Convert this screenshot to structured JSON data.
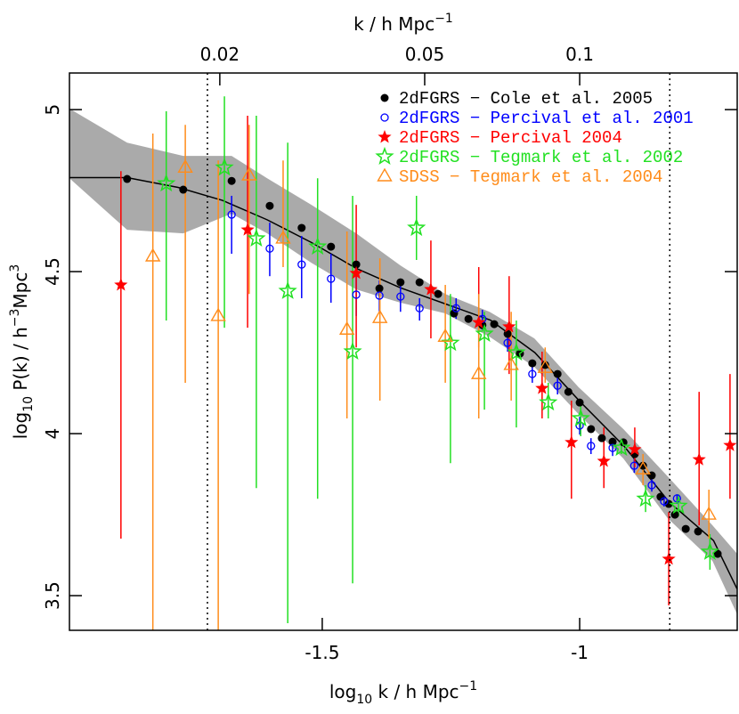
{
  "chart_data": {
    "type": "errorbar-scatter",
    "xlabel": [
      {
        "text": "log"
      },
      {
        "text": "10",
        "sub": true
      },
      {
        "text": " k / h Mpc"
      },
      {
        "text": "−1",
        "sup": true
      }
    ],
    "ylabel": [
      {
        "text": "log"
      },
      {
        "text": "10",
        "sub": true
      },
      {
        "text": " P(k) / h"
      },
      {
        "text": "−3",
        "sup": true
      },
      {
        "text": "Mpc"
      },
      {
        "text": "3",
        "sup": true
      }
    ],
    "top_axis": {
      "label": [
        {
          "text": "k / h Mpc"
        },
        {
          "text": "−1",
          "sup": true
        }
      ],
      "ticks": [
        0.02,
        0.05,
        0.1
      ],
      "log": true
    },
    "xlim": [
      -1.991,
      -0.694
    ],
    "ylim": [
      3.393,
      5.113
    ],
    "xticks": [
      -1.5,
      -1
    ],
    "yticks": [
      3.5,
      4,
      4.5,
      5
    ],
    "vlines": [
      -1.723,
      -0.825
    ],
    "legend": "upper right",
    "band": {
      "color": "#aaaaaa",
      "x": [
        -1.991,
        -1.879,
        -1.77,
        -1.676,
        -1.607,
        -1.521,
        -1.434,
        -1.348,
        -1.261,
        -1.175,
        -1.088,
        -1.002,
        -0.915,
        -0.829,
        -0.742,
        -0.694
      ],
      "upper": [
        5.003,
        4.898,
        4.857,
        4.857,
        4.788,
        4.706,
        4.618,
        4.519,
        4.431,
        4.376,
        4.294,
        4.143,
        4.014,
        3.868,
        3.717,
        3.629
      ],
      "lower": [
        4.788,
        4.629,
        4.618,
        4.679,
        4.618,
        4.527,
        4.445,
        4.404,
        4.371,
        4.299,
        4.206,
        4.06,
        3.923,
        3.739,
        3.607,
        3.442
      ]
    },
    "model": {
      "color": "#000000",
      "x": [
        -1.99,
        -1.879,
        -1.78,
        -1.694,
        -1.607,
        -1.521,
        -1.434,
        -1.348,
        -1.26,
        -1.173,
        -1.087,
        -1.0,
        -0.913,
        -0.827,
        -0.74,
        -0.694
      ],
      "values": [
        4.79,
        4.79,
        4.76,
        4.72,
        4.66,
        4.59,
        4.51,
        4.45,
        4.4,
        4.35,
        4.25,
        4.1,
        3.96,
        3.79,
        3.67,
        3.52
      ]
    },
    "series": [
      {
        "name": "2dFGRS − Cole et al. 2005",
        "color": "#000000",
        "marker": "filled-circle",
        "x": [
          -1.879,
          -1.77,
          -1.676,
          -1.602,
          -1.54,
          -1.483,
          -1.434,
          -1.389,
          -1.348,
          -1.311,
          -1.275,
          -1.244,
          -1.216,
          -1.189,
          -1.166,
          -1.14,
          -1.116,
          -1.092,
          -1.067,
          -1.043,
          -1.022,
          -1.0,
          -0.978,
          -0.957,
          -0.936,
          -0.915,
          -0.893,
          -0.877,
          -0.86,
          -0.843,
          -0.827,
          -0.815,
          -0.794,
          -0.77,
          -0.732
        ],
        "values": [
          4.786,
          4.753,
          4.78,
          4.703,
          4.635,
          4.577,
          4.522,
          4.448,
          4.467,
          4.467,
          4.431,
          4.371,
          4.354,
          4.335,
          4.338,
          4.308,
          4.247,
          4.217,
          4.212,
          4.184,
          4.129,
          4.096,
          4.014,
          3.986,
          3.975,
          3.973,
          3.937,
          3.901,
          3.871,
          3.805,
          3.783,
          3.75,
          3.706,
          3.698,
          3.629
        ]
      },
      {
        "name": "2dFGRS − Percival et al. 2001",
        "color": "#0000ff",
        "marker": "open-circle",
        "x": [
          -1.676,
          -1.602,
          -1.54,
          -1.483,
          -1.434,
          -1.389,
          -1.348,
          -1.311,
          -1.24,
          -1.189,
          -1.14,
          -1.092,
          -1.043,
          -1.0,
          -0.978,
          -0.936,
          -0.894,
          -0.86,
          -0.836,
          -0.811
        ],
        "values": [
          4.676,
          4.571,
          4.522,
          4.478,
          4.429,
          4.426,
          4.423,
          4.387,
          4.387,
          4.354,
          4.28,
          4.184,
          4.148,
          4.025,
          3.962,
          3.956,
          3.901,
          3.841,
          3.791,
          3.8
        ],
        "ymin": [
          4.555,
          4.486,
          4.418,
          4.404,
          4.363,
          4.376,
          4.376,
          4.349,
          4.354,
          4.321,
          4.253,
          4.157,
          4.121,
          3.997,
          3.937,
          3.931,
          3.879,
          3.821,
          3.775,
          3.783
        ],
        "ymax": [
          4.734,
          4.651,
          4.61,
          4.555,
          4.5,
          4.473,
          4.464,
          4.418,
          4.418,
          4.382,
          4.308,
          4.212,
          4.176,
          4.052,
          3.986,
          3.981,
          3.923,
          3.86,
          3.808,
          3.813
        ]
      },
      {
        "name": "2dFGRS − Percival 2004",
        "color": "#ff0000",
        "marker": "filled-star",
        "x": [
          -1.891,
          -1.645,
          -1.434,
          -1.289,
          -1.196,
          -1.137,
          -1.073,
          -1.016,
          -0.953,
          -0.893,
          -0.827,
          -0.768,
          -0.708
        ],
        "values": [
          4.459,
          4.629,
          4.495,
          4.445,
          4.343,
          4.33,
          4.14,
          3.973,
          3.915,
          3.951,
          3.613,
          3.92,
          3.964
        ],
        "ymin": [
          3.676,
          4.327,
          4.266,
          4.294,
          4.266,
          4.184,
          4.047,
          3.799,
          3.832,
          3.896,
          3.47,
          3.717,
          3.799
        ],
        "ymax": [
          4.81,
          4.981,
          4.706,
          4.596,
          4.514,
          4.486,
          4.253,
          4.102,
          4.019,
          4.019,
          3.758,
          4.129,
          4.184
        ]
      },
      {
        "name": "2dFGRS − Tegmark et al. 2002",
        "color": "#22e022",
        "marker": "open-star",
        "x": [
          -1.803,
          -1.69,
          -1.628,
          -1.567,
          -1.509,
          -1.441,
          -1.317,
          -1.251,
          -1.185,
          -1.123,
          -1.061,
          -0.998,
          -0.919,
          -0.872,
          -0.808,
          -0.747
        ],
        "values": [
          4.772,
          4.821,
          4.602,
          4.44,
          4.577,
          4.253,
          4.635,
          4.28,
          4.308,
          4.25,
          4.096,
          4.047,
          3.956,
          3.799,
          3.777,
          3.635
        ],
        "ymin": [
          4.349,
          4.327,
          3.832,
          3.415,
          3.799,
          3.538,
          4.536,
          3.909,
          4.074,
          4.019,
          4.047,
          3.992,
          3.937,
          3.758,
          3.745,
          3.58
        ],
        "ymax": [
          4.995,
          5.041,
          4.981,
          4.898,
          4.788,
          4.734,
          4.734,
          4.431,
          4.376,
          4.349,
          4.157,
          4.088,
          3.978,
          3.841,
          3.813,
          3.69
        ]
      },
      {
        "name": "SDSS − Tegmark et al. 2004",
        "color": "#ff8c1a",
        "marker": "open-triangle",
        "x": [
          -1.829,
          -1.766,
          -1.702,
          -1.642,
          -1.576,
          -1.452,
          -1.388,
          -1.261,
          -1.196,
          -1.133,
          -1.067,
          -0.877,
          -0.749
        ],
        "values": [
          4.547,
          4.821,
          4.363,
          4.797,
          4.602,
          4.321,
          4.357,
          4.299,
          4.184,
          4.212,
          4.203,
          3.89,
          3.75
        ],
        "ymin": [
          3.393,
          4.157,
          3.393,
          4.431,
          4.514,
          4.047,
          4.102,
          4.157,
          4.047,
          4.102,
          4.157,
          3.841,
          3.676
        ],
        "ymax": [
          4.926,
          4.953,
          4.843,
          4.953,
          4.843,
          4.624,
          4.541,
          4.459,
          4.431,
          4.376,
          4.266,
          3.937,
          3.827
        ]
      }
    ]
  }
}
